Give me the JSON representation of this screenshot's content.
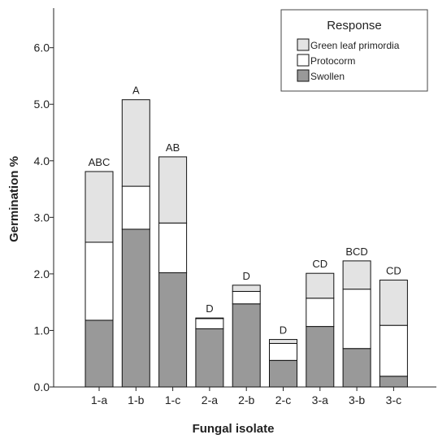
{
  "chart_data": {
    "type": "bar",
    "stacked": true,
    "categories": [
      "1-a",
      "1-b",
      "1-c",
      "2-a",
      "2-b",
      "2-c",
      "3-a",
      "3-b",
      "3-c"
    ],
    "series": [
      {
        "name": "Swollen",
        "color": "#999999",
        "values": [
          1.18,
          2.79,
          2.02,
          1.03,
          1.47,
          0.47,
          1.07,
          0.68,
          0.19
        ]
      },
      {
        "name": "Protocorm",
        "color": "#ffffff",
        "values": [
          1.38,
          0.76,
          0.88,
          0.18,
          0.22,
          0.3,
          0.5,
          1.05,
          0.9
        ]
      },
      {
        "name": "Green leaf primordia",
        "color": "#e3e3e3",
        "values": [
          1.25,
          1.53,
          1.17,
          0.01,
          0.11,
          0.07,
          0.44,
          0.5,
          0.8
        ]
      }
    ],
    "significance_labels": [
      "ABC",
      "A",
      "AB",
      "D",
      "D",
      "D",
      "CD",
      "BCD",
      "CD"
    ],
    "yticks": [
      "0.0",
      "1.0",
      "2.0",
      "3.0",
      "4.0",
      "5.0",
      "6.0"
    ],
    "ylim": [
      0,
      6.7
    ],
    "xlabel": "Fungal isolate",
    "ylabel": "Germination %",
    "legend": {
      "title": "Response",
      "position": "top-right",
      "entries": [
        "Green leaf primordia",
        "Protocorm",
        "Swollen"
      ]
    },
    "grid": false
  }
}
